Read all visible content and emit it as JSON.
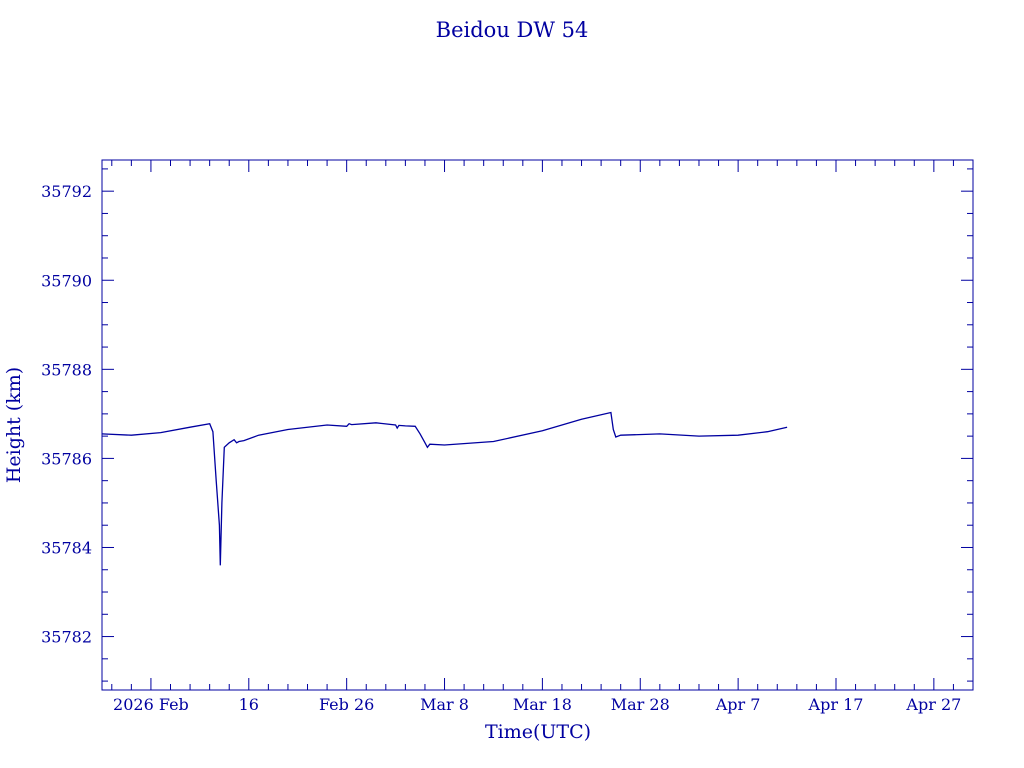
{
  "chart_data": {
    "type": "line",
    "title": "Beidou DW 54",
    "xlabel": "Time(UTC)",
    "ylabel": "Height (km)",
    "color": "#0000a0",
    "xlim": [
      "2026-02-01T00:00",
      "2026-05-01T00:00"
    ],
    "ylim": [
      35780.8,
      35792.7
    ],
    "x_ticks": [
      {
        "date": "2026-02-06",
        "label": "2026 Feb"
      },
      {
        "date": "2026-02-16",
        "label": "16"
      },
      {
        "date": "2026-02-26",
        "label": "Feb 26"
      },
      {
        "date": "2026-03-08",
        "label": "Mar  8"
      },
      {
        "date": "2026-03-18",
        "label": "Mar 18"
      },
      {
        "date": "2026-03-28",
        "label": "Mar 28"
      },
      {
        "date": "2026-04-07",
        "label": "Apr  7"
      },
      {
        "date": "2026-04-17",
        "label": "Apr 17"
      },
      {
        "date": "2026-04-27",
        "label": "Apr 27"
      }
    ],
    "y_ticks": [
      35782,
      35784,
      35786,
      35788,
      35790,
      35792
    ],
    "y_minor_step": 0.5,
    "x_minor_step_days": 2,
    "grid": false,
    "legend": "none",
    "series": [
      {
        "x": [
          "2026-02-01T00:00",
          "2026-02-04T00:00",
          "2026-02-07T00:00",
          "2026-02-10T00:00",
          "2026-02-12T00:00",
          "2026-02-12T08:00",
          "2026-02-12T16:00",
          "2026-02-13T00:00",
          "2026-02-13T02:00",
          "2026-02-13T06:00",
          "2026-02-13T12:00",
          "2026-02-14T00:00",
          "2026-02-14T12:00",
          "2026-02-14T18:00",
          "2026-02-15T00:00",
          "2026-02-15T12:00",
          "2026-02-17T00:00",
          "2026-02-20T00:00",
          "2026-02-24T00:00",
          "2026-02-26T00:00",
          "2026-02-26T06:00",
          "2026-02-26T12:00",
          "2026-03-01T00:00",
          "2026-03-03T00:00",
          "2026-03-03T04:00",
          "2026-03-03T08:00",
          "2026-03-04T00:00",
          "2026-03-05T00:00",
          "2026-03-05T12:00",
          "2026-03-06T00:00",
          "2026-03-06T06:00",
          "2026-03-06T12:00",
          "2026-03-08T00:00",
          "2026-03-13T00:00",
          "2026-03-18T00:00",
          "2026-03-22T00:00",
          "2026-03-25T00:00",
          "2026-03-25T06:00",
          "2026-03-25T12:00",
          "2026-03-26T00:00",
          "2026-03-30T00:00",
          "2026-04-03T00:00",
          "2026-04-07T00:00",
          "2026-04-10T00:00",
          "2026-04-12T00:00"
        ],
        "y": [
          35786.55,
          35786.52,
          35786.58,
          35786.7,
          35786.78,
          35786.6,
          35785.5,
          35784.5,
          35783.6,
          35785.0,
          35786.25,
          35786.35,
          35786.42,
          35786.35,
          35786.38,
          35786.4,
          35786.52,
          35786.65,
          35786.75,
          35786.72,
          35786.78,
          35786.76,
          35786.8,
          35786.75,
          35786.68,
          35786.74,
          35786.73,
          35786.72,
          35786.55,
          35786.35,
          35786.25,
          35786.32,
          35786.3,
          35786.38,
          35786.62,
          35786.88,
          35787.03,
          35786.65,
          35786.48,
          35786.52,
          35786.55,
          35786.5,
          35786.52,
          35786.6,
          35786.7
        ]
      }
    ]
  }
}
